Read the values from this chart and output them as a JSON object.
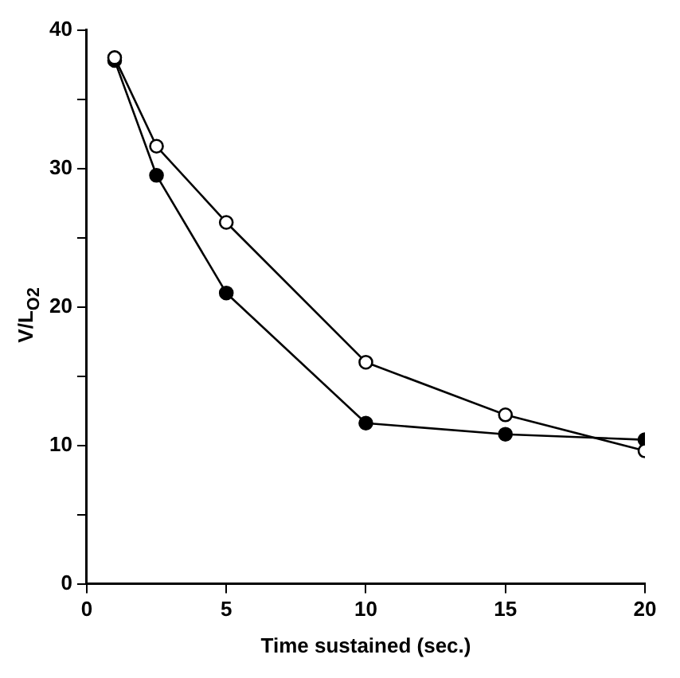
{
  "chart_data": {
    "type": "line",
    "xlabel": "Time sustained (sec.)",
    "ylabel": "V/L$_{O2}$",
    "xlim": [
      0,
      20
    ],
    "xticks": [
      0,
      5,
      10,
      15,
      20
    ],
    "ylim": [
      0,
      40
    ],
    "yticks": [
      0,
      {
        "value": 5,
        "label": null
      },
      10,
      {
        "value": 15,
        "label": null
      },
      20,
      {
        "value": 25,
        "label": null
      },
      30,
      {
        "value": 35,
        "label": null
      },
      40
    ],
    "grid": false,
    "legend": false,
    "marker": "circle",
    "line_style": "solid",
    "series": [
      {
        "color": "#000000",
        "x": [
          1,
          2.5,
          5,
          10,
          15,
          20
        ],
        "values": [
          38.0,
          31.6,
          26.1,
          16.0,
          12.2,
          9.6
        ]
      },
      {
        "color": "#000000",
        "x": [
          1,
          2.5,
          5,
          10,
          15,
          20
        ],
        "values": [
          37.8,
          29.5,
          21.0,
          11.6,
          10.8,
          10.4
        ]
      }
    ]
  }
}
